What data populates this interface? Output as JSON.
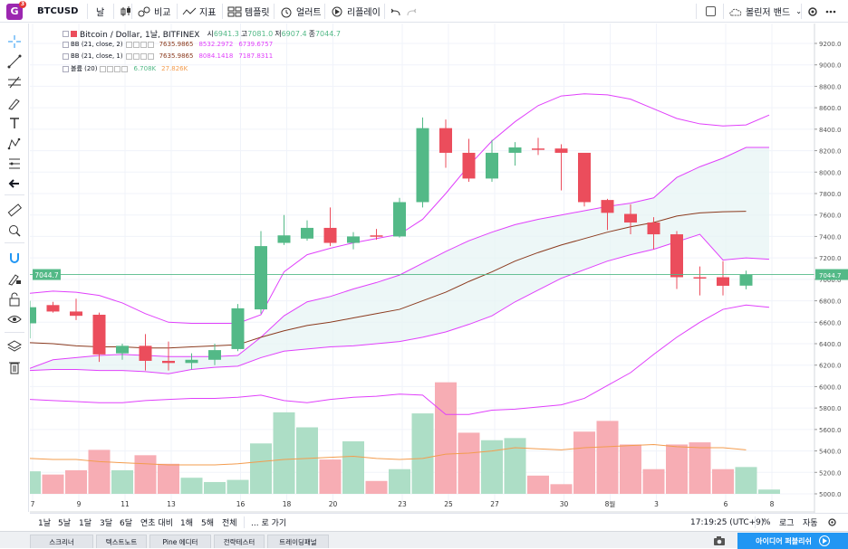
{
  "toolbar": {
    "symbol": "BTCUSD",
    "user_badge": "G",
    "user_notifications": "3",
    "interval": "날",
    "compare": "비교",
    "indicators": "지표",
    "templates": "템플릿",
    "alerts": "얼러트",
    "replay": "리플레이",
    "indicator_select": "볼린저 밴드"
  },
  "legend": {
    "title": "Bitcoin / Dollar, 1날, BITFINEX",
    "open_label": "시",
    "open": "6941.3",
    "high_label": "고",
    "high": "7081.0",
    "low_label": "저",
    "low": "6907.4",
    "close_label": "종",
    "close": "7044.7",
    "bb1_label": "BB (21, close, 2)",
    "bb1_v1": "7635.9865",
    "bb1_v2": "8532.2972",
    "bb1_v3": "6739.6757",
    "bb2_label": "BB (21, close, 1)",
    "bb2_v1": "7635.9865",
    "bb2_v2": "8084.1418",
    "bb2_v3": "7187.8311",
    "vol_label": "볼륨 (20)",
    "vol_v1": "6.708K",
    "vol_v2": "27.826K"
  },
  "price_axis": {
    "ticks": [
      "9200.0",
      "9000.0",
      "8800.0",
      "8600.0",
      "8400.0",
      "8200.0",
      "8000.0",
      "7800.0",
      "7600.0",
      "7400.0",
      "7200.0",
      "7000.0",
      "6800.0",
      "6600.0",
      "6400.0",
      "6200.0",
      "6000.0",
      "5800.0",
      "5600.0",
      "5400.0",
      "5200.0",
      "5000.0"
    ],
    "last_price": "7044.7"
  },
  "time_axis": {
    "ticks": [
      "7",
      "9",
      "11",
      "13",
      "16",
      "18",
      "20",
      "23",
      "25",
      "27",
      "30",
      "8월",
      "3",
      "6",
      "8"
    ]
  },
  "bottombar": {
    "ranges": [
      "1날",
      "5날",
      "1달",
      "3달",
      "6달",
      "연초 대비",
      "1해",
      "5해",
      "전체"
    ],
    "goto": "... 로 가기",
    "clock": "17:19:25 (UTC+9)",
    "percent": "%",
    "log": "로그",
    "auto": "자동"
  },
  "tabs": {
    "items": [
      "스크리너",
      "텍스트노트",
      "Pine 에디터",
      "전략테스터",
      "트레이딩패널"
    ],
    "publish": "아이디어 퍼블리쉬"
  },
  "colors": {
    "up": "#53b987",
    "down": "#eb4d5c",
    "bb_outer": "#e040fb",
    "bb_basis": "#8b3a1e",
    "vol_ma": "#f39c4e",
    "fill": "#e6f4f3",
    "accent": "#2196f3"
  },
  "chart_data": {
    "type": "candlestick",
    "symbol": "BTCUSD",
    "exchange": "BITFINEX",
    "ylim": [
      4900,
      9300
    ],
    "candles": [
      {
        "o": 6590,
        "h": 6800,
        "l": 6450,
        "c": 6740
      },
      {
        "o": 6760,
        "h": 6790,
        "l": 6690,
        "c": 6700
      },
      {
        "o": 6700,
        "h": 6820,
        "l": 6620,
        "c": 6660
      },
      {
        "o": 6670,
        "h": 6690,
        "l": 6230,
        "c": 6300
      },
      {
        "o": 6310,
        "h": 6400,
        "l": 6250,
        "c": 6380
      },
      {
        "o": 6380,
        "h": 6490,
        "l": 6150,
        "c": 6240
      },
      {
        "o": 6240,
        "h": 6420,
        "l": 6150,
        "c": 6220
      },
      {
        "o": 6220,
        "h": 6310,
        "l": 6160,
        "c": 6250
      },
      {
        "o": 6250,
        "h": 6400,
        "l": 6200,
        "c": 6340
      },
      {
        "o": 6350,
        "h": 6770,
        "l": 6330,
        "c": 6730
      },
      {
        "o": 6720,
        "h": 7450,
        "l": 6680,
        "c": 7310
      },
      {
        "o": 7340,
        "h": 7600,
        "l": 7320,
        "c": 7410
      },
      {
        "o": 7380,
        "h": 7550,
        "l": 7360,
        "c": 7480
      },
      {
        "o": 7480,
        "h": 7670,
        "l": 7310,
        "c": 7340
      },
      {
        "o": 7340,
        "h": 7440,
        "l": 7280,
        "c": 7400
      },
      {
        "o": 7410,
        "h": 7470,
        "l": 7370,
        "c": 7400
      },
      {
        "o": 7400,
        "h": 7760,
        "l": 7390,
        "c": 7720
      },
      {
        "o": 7720,
        "h": 8510,
        "l": 7670,
        "c": 8410
      },
      {
        "o": 8410,
        "h": 8490,
        "l": 8040,
        "c": 8180
      },
      {
        "o": 8180,
        "h": 8310,
        "l": 7910,
        "c": 7940
      },
      {
        "o": 7940,
        "h": 8300,
        "l": 7910,
        "c": 8180
      },
      {
        "o": 8180,
        "h": 8280,
        "l": 8060,
        "c": 8230
      },
      {
        "o": 8220,
        "h": 8320,
        "l": 8160,
        "c": 8210
      },
      {
        "o": 8220,
        "h": 8260,
        "l": 7830,
        "c": 8180
      },
      {
        "o": 8180,
        "h": 8180,
        "l": 7680,
        "c": 7720
      },
      {
        "o": 7740,
        "h": 7750,
        "l": 7460,
        "c": 7620
      },
      {
        "o": 7610,
        "h": 7700,
        "l": 7420,
        "c": 7530
      },
      {
        "o": 7530,
        "h": 7580,
        "l": 7280,
        "c": 7420
      },
      {
        "o": 7420,
        "h": 7450,
        "l": 6910,
        "c": 7020
      },
      {
        "o": 7020,
        "h": 7120,
        "l": 6850,
        "c": 7010
      },
      {
        "o": 7020,
        "h": 7170,
        "l": 6850,
        "c": 6940
      },
      {
        "o": 6941.3,
        "h": 7081,
        "l": 6907.4,
        "c": 7044.7
      }
    ],
    "volume": [
      5210,
      5180,
      5220,
      5410,
      5220,
      5360,
      5280,
      5150,
      5110,
      5130,
      5470,
      5760,
      5620,
      5320,
      5490,
      5120,
      5230,
      5750,
      6040,
      5570,
      5500,
      5520,
      5170,
      5090,
      5580,
      5680,
      5460,
      5230,
      5460,
      5480,
      5230,
      5250,
      5040
    ],
    "bb2_upper": [
      6170,
      6250,
      6270,
      6290,
      6300,
      6290,
      6280,
      6280,
      6280,
      6290,
      6460,
      6660,
      6790,
      6840,
      6910,
      6970,
      7040,
      7150,
      7260,
      7360,
      7440,
      7510,
      7560,
      7600,
      7640,
      7680,
      7710,
      7760,
      7950,
      8050,
      8130,
      8230,
      8230
    ],
    "bb2_mid": [
      6410,
      6400,
      6380,
      6370,
      6370,
      6360,
      6360,
      6370,
      6380,
      6390,
      6460,
      6520,
      6570,
      6600,
      6640,
      6680,
      6720,
      6800,
      6880,
      6980,
      7070,
      7170,
      7250,
      7320,
      7380,
      7440,
      7490,
      7530,
      7590,
      7620,
      7630,
      7635
    ],
    "bb2_lower": [
      6150,
      6160,
      6160,
      6150,
      6150,
      6140,
      6120,
      6160,
      6180,
      6190,
      6270,
      6330,
      6350,
      6370,
      6380,
      6400,
      6420,
      6460,
      6510,
      6580,
      6660,
      6790,
      6900,
      7010,
      7090,
      7170,
      7230,
      7280,
      7350,
      7420,
      7180,
      7200,
      7187.8
    ],
    "bb1_upper": [
      6870,
      6890,
      6880,
      6850,
      6780,
      6680,
      6600,
      6590,
      6590,
      6590,
      6670,
      7070,
      7230,
      7290,
      7340,
      7380,
      7420,
      7560,
      7800,
      8060,
      8290,
      8470,
      8620,
      8710,
      8730,
      8720,
      8680,
      8590,
      8500,
      8450,
      8430,
      8440,
      8532
    ],
    "bb1_lower": [
      5880,
      5870,
      5860,
      5850,
      5850,
      5870,
      5880,
      5890,
      5890,
      5900,
      5920,
      5870,
      5850,
      5880,
      5900,
      5910,
      5930,
      5920,
      5740,
      5740,
      5780,
      5790,
      5810,
      5830,
      5890,
      6010,
      6130,
      6300,
      6460,
      6600,
      6720,
      6760,
      6739
    ],
    "vol_ma": [
      5330,
      5320,
      5320,
      5300,
      5290,
      5280,
      5270,
      5270,
      5270,
      5280,
      5300,
      5320,
      5330,
      5340,
      5350,
      5330,
      5320,
      5330,
      5370,
      5380,
      5400,
      5430,
      5420,
      5410,
      5430,
      5440,
      5450,
      5460,
      5440,
      5430,
      5430,
      5410
    ]
  }
}
